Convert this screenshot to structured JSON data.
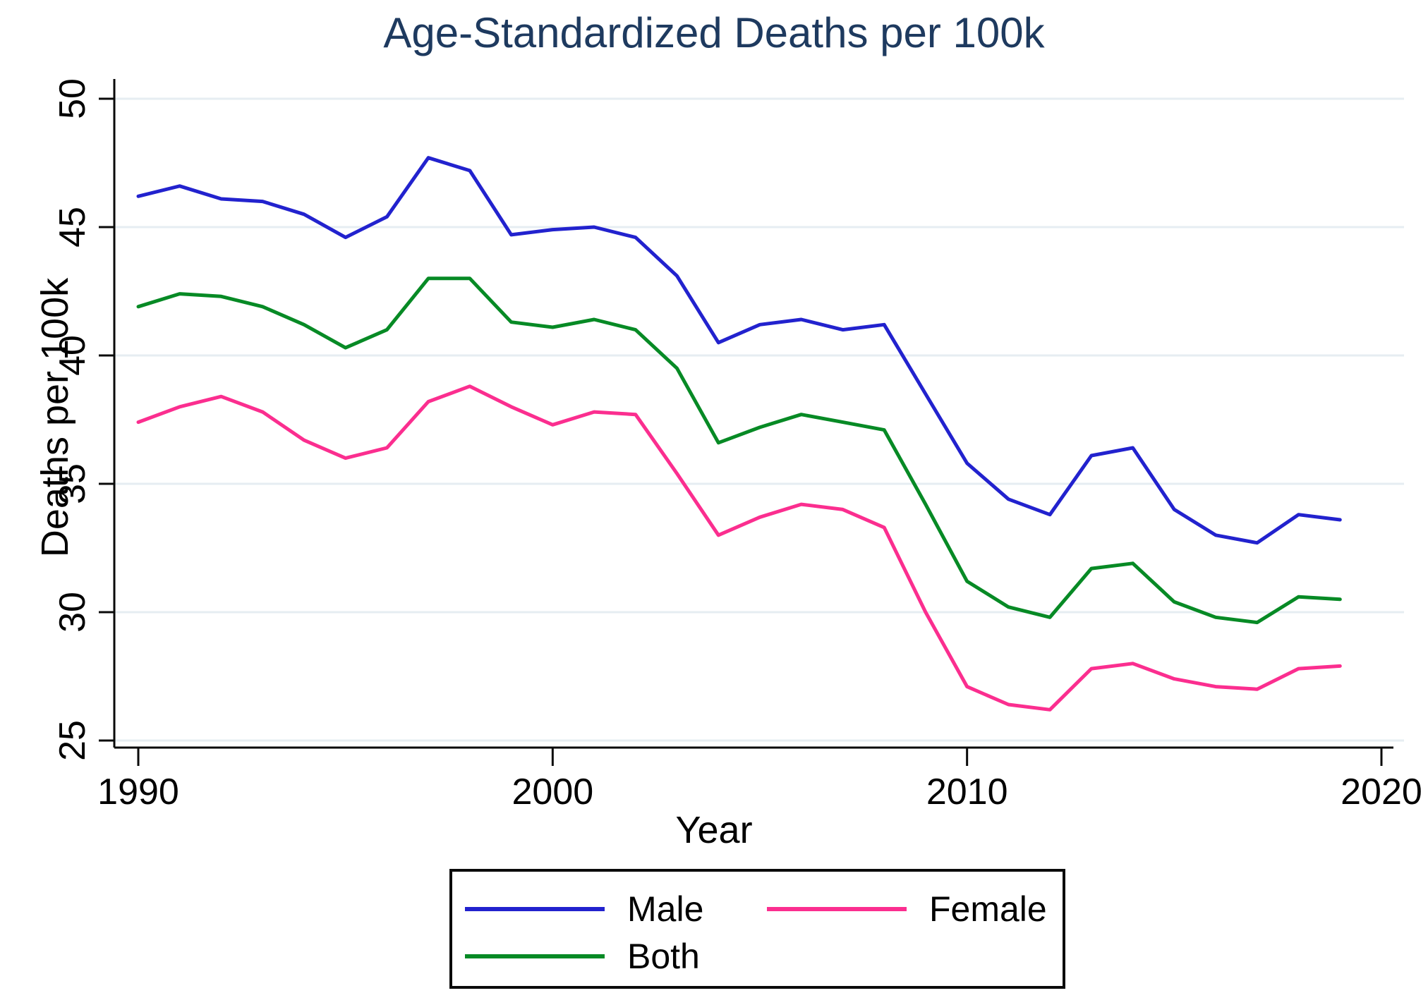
{
  "chart_data": {
    "type": "line",
    "title": "Age-Standardized Deaths per 100k",
    "xlabel": "Year",
    "ylabel": "Deaths per 100k",
    "x": [
      1990,
      1991,
      1992,
      1993,
      1994,
      1995,
      1996,
      1997,
      1998,
      1999,
      2000,
      2001,
      2002,
      2003,
      2004,
      2005,
      2006,
      2007,
      2008,
      2009,
      2010,
      2011,
      2012,
      2013,
      2014,
      2015,
      2016,
      2017,
      2018,
      2019
    ],
    "series": [
      {
        "name": "Male",
        "color": "#2222ce",
        "values": [
          46.2,
          46.6,
          46.1,
          46.0,
          45.5,
          44.6,
          45.4,
          47.7,
          47.2,
          44.7,
          44.9,
          45.0,
          44.6,
          43.1,
          40.5,
          41.2,
          41.4,
          41.0,
          41.2,
          38.5,
          35.8,
          34.4,
          33.8,
          36.1,
          36.4,
          34.0,
          33.0,
          32.7,
          33.8,
          33.6
        ]
      },
      {
        "name": "Female",
        "color": "#fb2e8f",
        "values": [
          37.4,
          38.0,
          38.4,
          37.8,
          36.7,
          36.0,
          36.4,
          38.2,
          38.8,
          38.0,
          37.3,
          37.8,
          37.7,
          35.4,
          33.0,
          33.7,
          34.2,
          34.0,
          33.3,
          30.0,
          27.1,
          26.4,
          26.2,
          27.8,
          28.0,
          27.4,
          27.1,
          27.0,
          27.8,
          27.9
        ]
      },
      {
        "name": "Both",
        "color": "#078a25",
        "values": [
          41.9,
          42.4,
          42.3,
          41.9,
          41.2,
          40.3,
          41.0,
          43.0,
          43.0,
          41.3,
          41.1,
          41.4,
          41.0,
          39.5,
          36.6,
          37.2,
          37.7,
          37.4,
          37.1,
          34.2,
          31.2,
          30.2,
          29.8,
          31.7,
          31.9,
          30.4,
          29.8,
          29.6,
          30.6,
          30.5
        ]
      }
    ],
    "xticks": [
      1990,
      2000,
      2010,
      2020
    ],
    "yticks": [
      25,
      30,
      35,
      40,
      45,
      50
    ],
    "xlim": [
      1990,
      2020
    ],
    "ylim": [
      25,
      50
    ],
    "grid": "horizontal",
    "legend_position": "bottom",
    "colors": {
      "title": "#1e3a5f",
      "axis": "#0a0a0a",
      "gridline": "#e6edf2",
      "tick_label": "#000000"
    }
  }
}
